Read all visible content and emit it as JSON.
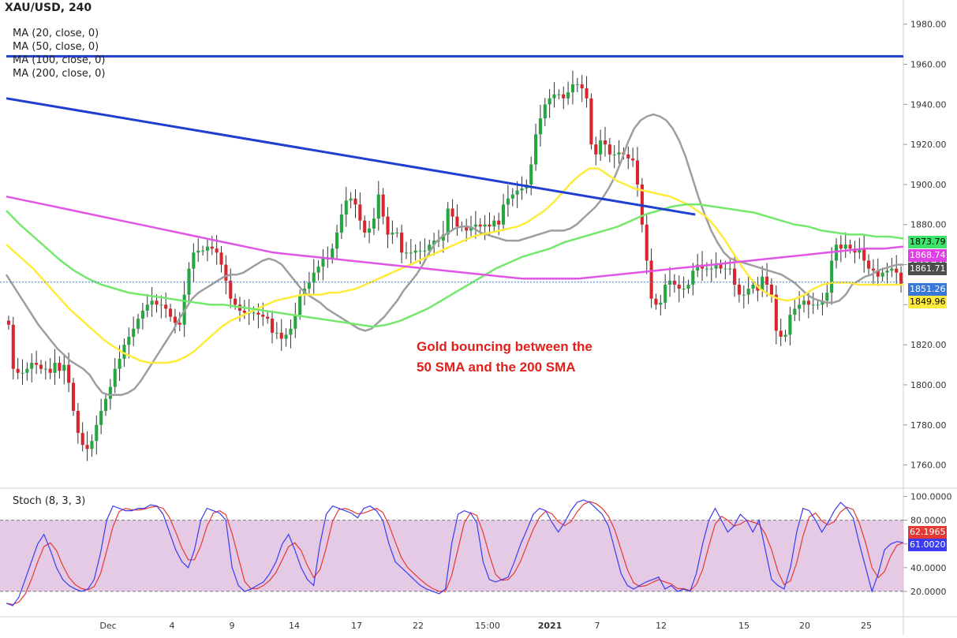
{
  "chart_data": {
    "type": "line",
    "symbol": "XAU/USD, 240",
    "legend": [
      "MA (20, close, 0)",
      "MA (50, close, 0)",
      "MA (100, close, 0)",
      "MA (200, close, 0)"
    ],
    "annotation": [
      "Gold bouncing between the",
      "50 SMA and the 200 SMA"
    ],
    "x_tick_labels": [
      "Dec",
      "4",
      "9",
      "14",
      "17",
      "22",
      "15:00",
      "2021",
      "7",
      "12",
      "15",
      "20",
      "25"
    ],
    "y_axis": {
      "ylim": [
        1750,
        1985
      ],
      "ticks": [
        1760,
        1780,
        1800,
        1820,
        1840,
        1860,
        1880,
        1900,
        1920,
        1940,
        1960,
        1980
      ],
      "tick_labels": [
        "1760.00",
        "1780.00",
        "1800.00",
        "1820.00",
        "1840.00",
        "1860.00",
        "1880.00",
        "1900.00",
        "1920.00",
        "1940.00",
        "1960.00",
        "1980.00"
      ]
    },
    "candles_close": [
      1830,
      1808,
      1806,
      1806,
      1808,
      1811,
      1810,
      1808,
      1808,
      1806,
      1811,
      1807,
      1810,
      1801,
      1787,
      1776,
      1770,
      1768,
      1772,
      1780,
      1787,
      1793,
      1799,
      1808,
      1813,
      1820,
      1824,
      1828,
      1833,
      1837,
      1840,
      1842,
      1840,
      1840,
      1838,
      1834,
      1831,
      1830,
      1845,
      1858,
      1866,
      1867,
      1867,
      1869,
      1868,
      1866,
      1860,
      1852,
      1843,
      1840,
      1837,
      1836,
      1836,
      1836,
      1835,
      1834,
      1833,
      1826,
      1826,
      1823,
      1825,
      1828,
      1835,
      1845,
      1848,
      1851,
      1856,
      1859,
      1863,
      1863,
      1868,
      1876,
      1885,
      1892,
      1893,
      1890,
      1882,
      1876,
      1878,
      1883,
      1895,
      1884,
      1875,
      1876,
      1876,
      1866,
      1866,
      1866,
      1867,
      1867,
      1867,
      1870,
      1872,
      1872,
      1875,
      1888,
      1884,
      1879,
      1879,
      1877,
      1879,
      1880,
      1879,
      1880,
      1879,
      1882,
      1880,
      1890,
      1893,
      1895,
      1897,
      1898,
      1900,
      1910,
      1925,
      1933,
      1940,
      1943,
      1945,
      1945,
      1943,
      1946,
      1950,
      1950,
      1948,
      1943,
      1920,
      1915,
      1922,
      1920,
      1915,
      1915,
      1916,
      1915,
      1913,
      1912,
      1900,
      1880,
      1862,
      1843,
      1840,
      1841,
      1850,
      1852,
      1850,
      1848,
      1848,
      1850,
      1857,
      1860,
      1858,
      1858,
      1858,
      1860,
      1858,
      1858,
      1858,
      1850,
      1845,
      1845,
      1848,
      1850,
      1847,
      1854,
      1850,
      1845,
      1827,
      1824,
      1825,
      1835,
      1838,
      1840,
      1842,
      1840,
      1840,
      1840,
      1842,
      1846,
      1862,
      1870,
      1868,
      1870,
      1868,
      1866,
      1868,
      1862,
      1858,
      1857,
      1854,
      1856,
      1857,
      1858,
      1856,
      1850
    ],
    "ohlc_volatility": 5,
    "series": [
      {
        "name": "MA (20, close, 0)",
        "color": "#9e9e9e",
        "values": [
          1855,
          1850,
          1845,
          1840,
          1835,
          1830,
          1826,
          1822,
          1818,
          1815,
          1812,
          1810,
          1808,
          1805,
          1800,
          1796,
          1795,
          1795,
          1795,
          1796,
          1798,
          1802,
          1807,
          1812,
          1817,
          1822,
          1827,
          1833,
          1838,
          1843,
          1846,
          1848,
          1850,
          1852,
          1854,
          1855,
          1855,
          1856,
          1858,
          1860,
          1862,
          1863,
          1862,
          1860,
          1856,
          1852,
          1848,
          1845,
          1843,
          1841,
          1838,
          1836,
          1834,
          1832,
          1830,
          1828,
          1827,
          1828,
          1831,
          1834,
          1838,
          1842,
          1847,
          1851,
          1855,
          1860,
          1866,
          1871,
          1874,
          1876,
          1878,
          1879,
          1879,
          1878,
          1876,
          1875,
          1874,
          1873,
          1872,
          1872,
          1872,
          1873,
          1874,
          1875,
          1876,
          1877,
          1877,
          1877,
          1878,
          1880,
          1883,
          1886,
          1889,
          1893,
          1898,
          1904,
          1912,
          1921,
          1928,
          1932,
          1934,
          1935,
          1934,
          1932,
          1928,
          1922,
          1914,
          1904,
          1894,
          1885,
          1877,
          1871,
          1866,
          1863,
          1862,
          1861,
          1860,
          1859,
          1858,
          1857,
          1856,
          1855,
          1853,
          1851,
          1848,
          1845,
          1843,
          1842,
          1841,
          1841,
          1842,
          1845,
          1850,
          1852,
          1854,
          1855,
          1857,
          1858,
          1859,
          1860,
          1860
        ]
      },
      {
        "name": "MA (50, close, 0)",
        "color": "#ffeb3b",
        "values": [
          1870,
          1866,
          1862,
          1858,
          1853,
          1848,
          1843,
          1838,
          1834,
          1830,
          1826,
          1822,
          1819,
          1816,
          1814,
          1812,
          1811,
          1811,
          1811,
          1812,
          1814,
          1817,
          1821,
          1825,
          1829,
          1832,
          1834,
          1836,
          1838,
          1840,
          1842,
          1843,
          1844,
          1845,
          1845,
          1845,
          1846,
          1846,
          1847,
          1848,
          1850,
          1852,
          1854,
          1856,
          1858,
          1860,
          1862,
          1864,
          1866,
          1868,
          1870,
          1872,
          1874,
          1875,
          1876,
          1877,
          1878,
          1879,
          1881,
          1884,
          1887,
          1891,
          1896,
          1901,
          1905,
          1908,
          1908,
          1905,
          1902,
          1900,
          1898,
          1897,
          1896,
          1895,
          1894,
          1892,
          1890,
          1887,
          1884,
          1879,
          1873,
          1866,
          1859,
          1853,
          1848,
          1845,
          1843,
          1842,
          1843,
          1845,
          1848,
          1850,
          1851,
          1851,
          1851,
          1850,
          1850,
          1850,
          1850,
          1850,
          1850
        ]
      },
      {
        "name": "MA (100, close, 0)",
        "color": "#73e86b",
        "values": [
          1887,
          1880,
          1874,
          1868,
          1862,
          1857,
          1853,
          1850,
          1848,
          1846,
          1845,
          1844,
          1843,
          1842,
          1841,
          1840,
          1840,
          1839,
          1838,
          1837,
          1836,
          1835,
          1834,
          1833,
          1832,
          1831,
          1830,
          1829,
          1830,
          1832,
          1835,
          1838,
          1842,
          1846,
          1850,
          1854,
          1858,
          1861,
          1864,
          1866,
          1868,
          1871,
          1873,
          1875,
          1877,
          1879,
          1882,
          1885,
          1887,
          1889,
          1890,
          1890,
          1889,
          1888,
          1887,
          1886,
          1884,
          1882,
          1880,
          1879,
          1877,
          1876,
          1875,
          1875,
          1874,
          1874,
          1873
        ]
      },
      {
        "name": "MA (200, close, 0)",
        "color": "#e055e6",
        "values": [
          1894,
          1892,
          1890,
          1888,
          1886,
          1884,
          1882,
          1880,
          1878,
          1876,
          1874,
          1872,
          1870,
          1868,
          1866,
          1865,
          1864,
          1863,
          1862,
          1861,
          1860,
          1859,
          1858,
          1857,
          1856,
          1855,
          1854,
          1853,
          1853,
          1853,
          1853,
          1854,
          1855,
          1856,
          1857,
          1858,
          1859,
          1860,
          1861,
          1862,
          1863,
          1864,
          1865,
          1866,
          1867,
          1868,
          1868,
          1869
        ]
      }
    ],
    "trendlines": [
      {
        "name": "descending-trendline",
        "color": "#1f3fd0",
        "from": [
          0,
          1943
        ],
        "to": [
          0.768,
          1885
        ]
      },
      {
        "name": "horizontal-resistance",
        "color": "#1f3fd0",
        "from": [
          0,
          1964
        ],
        "to": [
          1,
          1964
        ]
      }
    ],
    "price_labels": [
      {
        "value": "1873.79",
        "bg": "#3de36b",
        "fg": "#000000"
      },
      {
        "value": "1868.74",
        "bg": "#e040e6",
        "fg": "#ffffff"
      },
      {
        "value": "1861.71",
        "bg": "#4d4d4d",
        "fg": "#ffffff"
      },
      {
        "value": "1851.26",
        "bg": "#3a78d8",
        "fg": "#ffffff"
      },
      {
        "value": "1849.96",
        "bg": "#ffeb3b",
        "fg": "#000000"
      }
    ],
    "stochastic": {
      "title": "Stoch (8, 3, 3)",
      "ylim": [
        0,
        105
      ],
      "ticks": [
        20,
        40,
        60,
        80,
        100
      ],
      "tick_labels": [
        "20.0000",
        "40.0000",
        "60.0000",
        "80.0000",
        "100.0000"
      ],
      "band": [
        20,
        80
      ],
      "band_color": "#dcb8dc",
      "k_color": "#3b3bf0",
      "d_color": "#e53935",
      "k_label": "61.0020",
      "d_label": "62.1965",
      "k": [
        10,
        8,
        15,
        30,
        45,
        60,
        68,
        55,
        40,
        30,
        25,
        22,
        20,
        22,
        30,
        52,
        80,
        92,
        90,
        88,
        88,
        90,
        90,
        93,
        92,
        85,
        70,
        55,
        45,
        40,
        55,
        80,
        90,
        88,
        86,
        80,
        40,
        25,
        20,
        22,
        25,
        28,
        35,
        45,
        60,
        68,
        55,
        40,
        30,
        25,
        60,
        85,
        92,
        90,
        88,
        86,
        82,
        90,
        92,
        88,
        80,
        60,
        45,
        40,
        35,
        30,
        25,
        22,
        20,
        18,
        22,
        60,
        85,
        88,
        86,
        78,
        45,
        30,
        28,
        30,
        32,
        45,
        60,
        72,
        85,
        90,
        88,
        78,
        70,
        78,
        88,
        95,
        97,
        95,
        90,
        85,
        75,
        55,
        35,
        25,
        22,
        25,
        28,
        30,
        32,
        22,
        25,
        20,
        22,
        20,
        35,
        60,
        80,
        90,
        80,
        70,
        75,
        85,
        80,
        70,
        80,
        55,
        30,
        25,
        22,
        40,
        70,
        90,
        88,
        80,
        70,
        78,
        88,
        95,
        90,
        82,
        60,
        40,
        20,
        35,
        55,
        60,
        62,
        61
      ]
    }
  }
}
